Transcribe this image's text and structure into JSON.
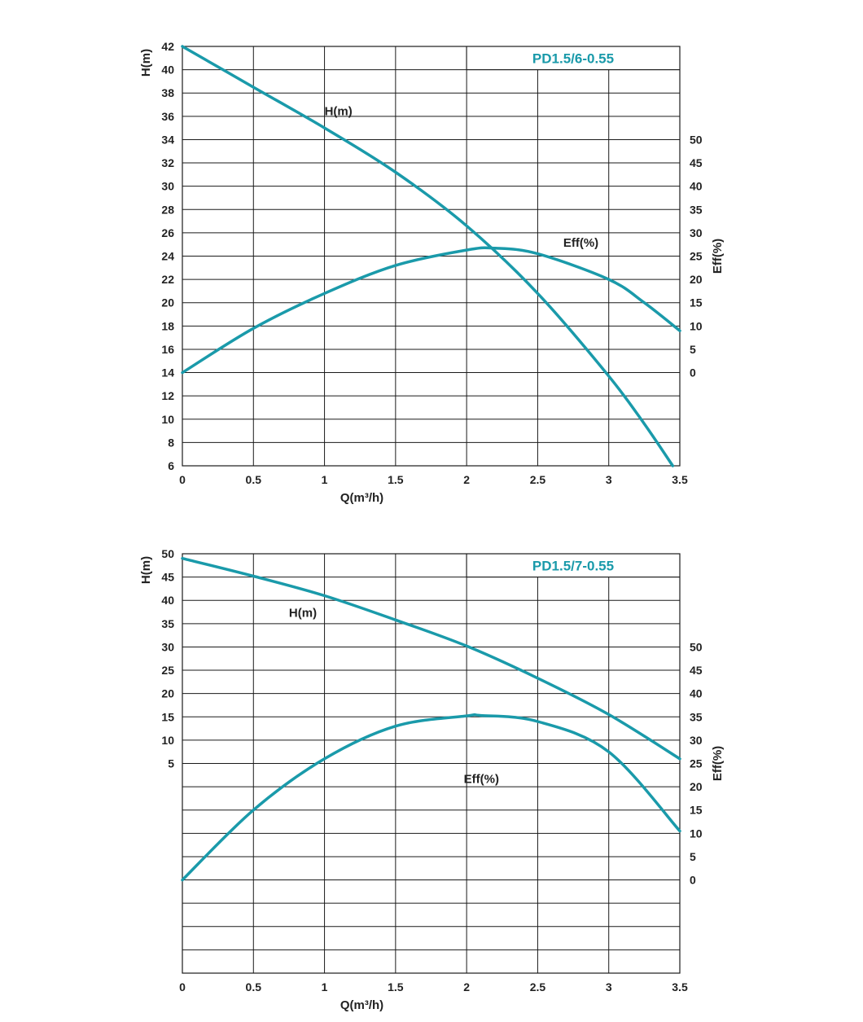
{
  "colors": {
    "curve": "#1a9aaa",
    "grid": "#1a1a1a",
    "text": "#222222"
  },
  "chart_data": [
    {
      "type": "line",
      "title": "PD1.5/6-0.55",
      "xlabel": "Q(m³/h)",
      "ylabel": "H(m)",
      "y2label": "Eff(%)",
      "xlim": [
        0,
        3.5
      ],
      "x_ticks": [
        "0",
        "0.5",
        "1",
        "1.5",
        "2",
        "2.5",
        "3",
        "3.5"
      ],
      "ylim": [
        6,
        42
      ],
      "y_ticks": [
        "6",
        "8",
        "10",
        "12",
        "14",
        "16",
        "18",
        "20",
        "22",
        "24",
        "26",
        "28",
        "30",
        "32",
        "34",
        "36",
        "38",
        "40",
        "42"
      ],
      "y2_ticks": [
        "0",
        "5",
        "10",
        "15",
        "20",
        "25",
        "30",
        "35",
        "40",
        "45",
        "50"
      ],
      "y2_axis": {
        "zero_at_left_value": 14,
        "units_per_left_unit": 2.5
      },
      "grid": true,
      "series": [
        {
          "name": "H(m)",
          "axis": "left",
          "x": [
            0,
            0.5,
            1,
            1.5,
            2,
            2.5,
            3,
            3.25,
            3.45
          ],
          "y": [
            42,
            38.5,
            35,
            31.2,
            26.6,
            20.8,
            13.7,
            9.6,
            6
          ]
        },
        {
          "name": "Eff(%)",
          "axis": "right",
          "x": [
            0,
            0.5,
            1,
            1.5,
            2,
            2.2,
            2.5,
            3,
            3.25,
            3.5
          ],
          "y": [
            0,
            9.5,
            17,
            23,
            26.3,
            26.7,
            25.5,
            20,
            15,
            9
          ]
        }
      ],
      "labels": [
        {
          "text": "H(m)",
          "x": 1.0,
          "y": 36.1
        },
        {
          "text": "Eff(%)",
          "x": 2.68,
          "y": 24.8
        }
      ]
    },
    {
      "type": "line",
      "title": "PD1.5/7-0.55",
      "xlabel": "Q(m³/h)",
      "ylabel": "H(m)",
      "y2label": "Eff(%)",
      "xlim": [
        0,
        3.5
      ],
      "x_ticks": [
        "0",
        "0.5",
        "1",
        "1.5",
        "2",
        "2.5",
        "3",
        "3.5"
      ],
      "ylim": [
        -40,
        50
      ],
      "y_ticks": [
        "5",
        "10",
        "15",
        "20",
        "25",
        "30",
        "35",
        "40",
        "45",
        "50"
      ],
      "y_tick_values": [
        5,
        10,
        15,
        20,
        25,
        30,
        35,
        40,
        45,
        50
      ],
      "extra_gridlines": [
        0,
        -5,
        -10,
        -15,
        -20,
        -25,
        -30,
        -35
      ],
      "y2_ticks": [
        "0",
        "5",
        "10",
        "15",
        "20",
        "25",
        "30",
        "35",
        "40",
        "45",
        "50"
      ],
      "y2_axis": {
        "zero_at_left_value": -20,
        "units_per_left_unit": 1
      },
      "grid": true,
      "series": [
        {
          "name": "H(m)",
          "axis": "left",
          "x": [
            0,
            0.5,
            1,
            1.5,
            2,
            2.5,
            3,
            3.5
          ],
          "y": [
            49,
            45.2,
            41,
            35.8,
            30.2,
            23.3,
            15.5,
            6
          ]
        },
        {
          "name": "Eff(%)",
          "axis": "right",
          "x": [
            0,
            0.5,
            1,
            1.5,
            2,
            2.1,
            2.5,
            3,
            3.5
          ],
          "y": [
            0,
            15,
            26,
            33,
            35.2,
            35.3,
            34,
            27.5,
            10.5
          ]
        }
      ],
      "labels": [
        {
          "text": "H(m)",
          "x": 0.75,
          "y": 36.5
        },
        {
          "text": "Eff(%)",
          "x": 1.98,
          "y": 0.8
        }
      ]
    }
  ]
}
